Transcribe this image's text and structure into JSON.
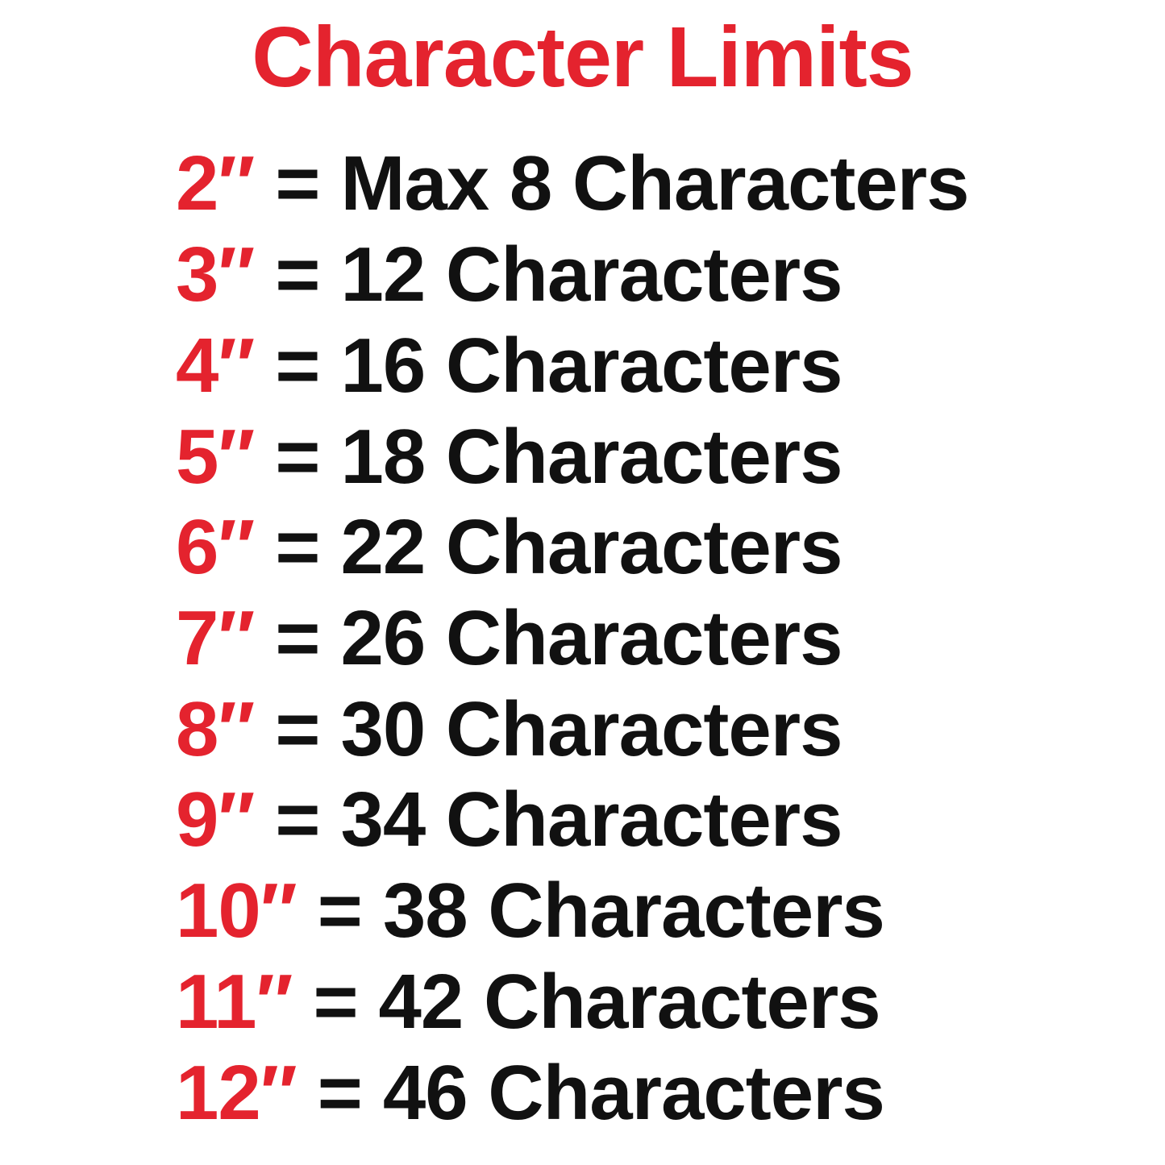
{
  "title": "Character Limits",
  "separator": "=",
  "colors": {
    "accent_red": "#e4232e",
    "text_black": "#111111",
    "background": "#ffffff"
  },
  "rows": [
    {
      "size": "2″",
      "limit": "Max 8 Characters"
    },
    {
      "size": "3″",
      "limit": "12 Characters"
    },
    {
      "size": "4″",
      "limit": "16 Characters"
    },
    {
      "size": "5″",
      "limit": "18 Characters"
    },
    {
      "size": "6″",
      "limit": "22 Characters"
    },
    {
      "size": "7″",
      "limit": "26 Characters"
    },
    {
      "size": "8″",
      "limit": "30 Characters"
    },
    {
      "size": "9″",
      "limit": "34 Characters"
    },
    {
      "size": "10″",
      "limit": "38 Characters"
    },
    {
      "size": "11″",
      "limit": "42 Characters"
    },
    {
      "size": "12″",
      "limit": "46 Characters"
    }
  ]
}
